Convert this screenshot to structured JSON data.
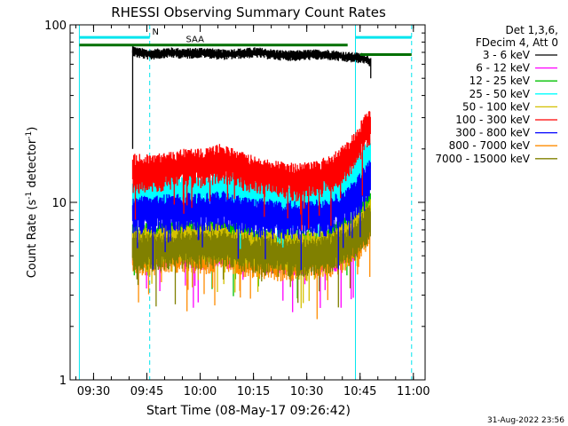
{
  "chart_data": {
    "type": "line",
    "title": "RHESSI Observing Summary Count Rates",
    "xlabel": "Start Time (08-May-17 09:26:42)",
    "ylabel_main": "Count Rate (s",
    "ylabel_sup1": "-1",
    "ylabel_mid": " detector",
    "ylabel_sup2": "-1",
    "ylabel_end": ")",
    "y_scale": "log",
    "ylim": [
      1,
      100
    ],
    "xlim_minutes_after_0926": [
      -2.6,
      97.3
    ],
    "y_ticks": [
      {
        "value": 1,
        "label": "1"
      },
      {
        "value": 10,
        "label": "10"
      },
      {
        "value": 100,
        "label": "100"
      }
    ],
    "x_ticks": [
      {
        "minute": 4,
        "label": "09:30"
      },
      {
        "minute": 19,
        "label": "09:45"
      },
      {
        "minute": 34,
        "label": "10:00"
      },
      {
        "minute": 49,
        "label": "10:15"
      },
      {
        "minute": 64,
        "label": "10:30"
      },
      {
        "minute": 79,
        "label": "10:45"
      },
      {
        "minute": 94,
        "label": "11:00"
      }
    ],
    "legend_header": [
      "Det 1,3,6,",
      "FDecim 4, Att 0"
    ],
    "legend_placement": "right",
    "series": [
      {
        "name": "3 - 6 keV",
        "color": "#000000",
        "t": [
          15,
          16,
          20,
          25,
          30,
          35,
          40,
          45,
          50,
          55,
          60,
          65,
          70,
          75,
          80,
          82
        ],
        "y": [
          72,
          70,
          68,
          70,
          69,
          70,
          68,
          69,
          70,
          68,
          67,
          68,
          68,
          66,
          65,
          62
        ]
      },
      {
        "name": "6 - 12 keV",
        "color": "#ff00ff",
        "t": [
          15,
          20,
          25,
          30,
          35,
          40,
          45,
          50,
          55,
          60,
          65,
          70,
          75,
          78,
          80,
          82
        ],
        "y": [
          5.6,
          5.4,
          5.5,
          5.6,
          5.5,
          5.7,
          5.4,
          5.3,
          5.2,
          5.1,
          5.2,
          5.3,
          5.6,
          6.5,
          7.6,
          8.5
        ]
      },
      {
        "name": "12 - 25 keV",
        "color": "#00c000",
        "t": [
          15,
          20,
          25,
          30,
          35,
          40,
          45,
          50,
          55,
          60,
          65,
          70,
          75,
          78,
          80,
          82
        ],
        "y": [
          6.2,
          6.1,
          6.3,
          6.4,
          6.3,
          6.5,
          6.1,
          5.9,
          5.8,
          5.7,
          5.8,
          6.0,
          6.6,
          7.6,
          8.7,
          9.7
        ]
      },
      {
        "name": "25 - 50 keV",
        "color": "#00ffff",
        "t": [
          15,
          20,
          25,
          30,
          35,
          40,
          45,
          50,
          55,
          60,
          65,
          70,
          75,
          78,
          80,
          82
        ],
        "y": [
          11.5,
          11.3,
          11.6,
          11.9,
          11.7,
          12.2,
          11.4,
          11.0,
          10.7,
          10.5,
          10.6,
          11.1,
          12.6,
          14.6,
          17.0,
          19.0
        ]
      },
      {
        "name": "50 - 100 keV",
        "color": "#d4c000",
        "t": [
          15,
          20,
          25,
          30,
          35,
          40,
          45,
          50,
          55,
          60,
          65,
          70,
          75,
          78,
          80,
          82
        ],
        "y": [
          5.9,
          5.8,
          6.0,
          6.1,
          6.0,
          6.2,
          5.8,
          5.6,
          5.5,
          5.4,
          5.5,
          5.7,
          6.2,
          7.1,
          8.0,
          8.8
        ]
      },
      {
        "name": "100 - 300 keV",
        "color": "#ff0000",
        "t": [
          15,
          20,
          25,
          30,
          35,
          40,
          45,
          50,
          55,
          60,
          65,
          70,
          75,
          78,
          80,
          82
        ],
        "y": [
          15.0,
          14.9,
          15.4,
          16.2,
          16.0,
          17.2,
          15.6,
          14.4,
          13.8,
          13.4,
          13.6,
          14.6,
          17.2,
          20.8,
          24.5,
          27.5
        ]
      },
      {
        "name": "300 - 800 keV",
        "color": "#0000ff",
        "t": [
          15,
          20,
          25,
          30,
          35,
          40,
          45,
          50,
          55,
          60,
          65,
          70,
          75,
          78,
          80,
          82
        ],
        "y": [
          8.8,
          8.7,
          8.9,
          9.1,
          9.0,
          9.3,
          8.8,
          8.5,
          8.3,
          8.2,
          8.3,
          8.6,
          9.6,
          11.0,
          12.6,
          14.2
        ]
      },
      {
        "name": "800 - 7000 keV",
        "color": "#ff8c00",
        "t": [
          15,
          20,
          25,
          30,
          35,
          40,
          45,
          50,
          55,
          60,
          65,
          70,
          75,
          78,
          80,
          82
        ],
        "y": [
          5.2,
          5.1,
          5.2,
          5.3,
          5.2,
          5.4,
          5.1,
          4.9,
          4.8,
          4.7,
          4.8,
          5.0,
          5.4,
          6.1,
          6.8,
          7.4
        ]
      },
      {
        "name": "7000 - 15000 keV",
        "color": "#808000",
        "t": [
          15,
          20,
          25,
          30,
          35,
          40,
          45,
          50,
          55,
          60,
          65,
          70,
          75,
          78,
          80,
          82
        ],
        "y": [
          5.5,
          5.4,
          5.5,
          5.6,
          5.5,
          5.7,
          5.4,
          5.2,
          5.1,
          5.0,
          5.1,
          5.3,
          5.7,
          6.4,
          7.2,
          7.9
        ]
      }
    ],
    "markers": [
      {
        "kind": "cyan-vline-solid",
        "minute": 0
      },
      {
        "kind": "cyan-vline-solid",
        "minute": 77.7
      },
      {
        "kind": "cyan-vline-dashed",
        "minute": 19.8
      },
      {
        "kind": "cyan-vline-dashed",
        "minute": 93.5
      }
    ],
    "bars": [
      {
        "kind": "night",
        "color": "#00e5ee",
        "t_start": 0,
        "t_end": 19.8,
        "y": 85
      },
      {
        "kind": "night",
        "color": "#00e5ee",
        "t_start": 77.7,
        "t_end": 93.5,
        "y": 85
      },
      {
        "kind": "attenuator",
        "color": "#007000",
        "t_start": 0,
        "t_end": 75.5,
        "y": 77
      },
      {
        "kind": "attenuator",
        "color": "#007000",
        "t_start": 79,
        "t_end": 93.5,
        "y": 68
      }
    ],
    "annotations": [
      {
        "text": "N",
        "minute": 20.5,
        "y": 88,
        "color": "#00e5ee"
      },
      {
        "text": "SAA",
        "minute": 30,
        "y": 80,
        "color": "#000000"
      }
    ],
    "footer_timestamp": "31-Aug-2022 23:56"
  }
}
